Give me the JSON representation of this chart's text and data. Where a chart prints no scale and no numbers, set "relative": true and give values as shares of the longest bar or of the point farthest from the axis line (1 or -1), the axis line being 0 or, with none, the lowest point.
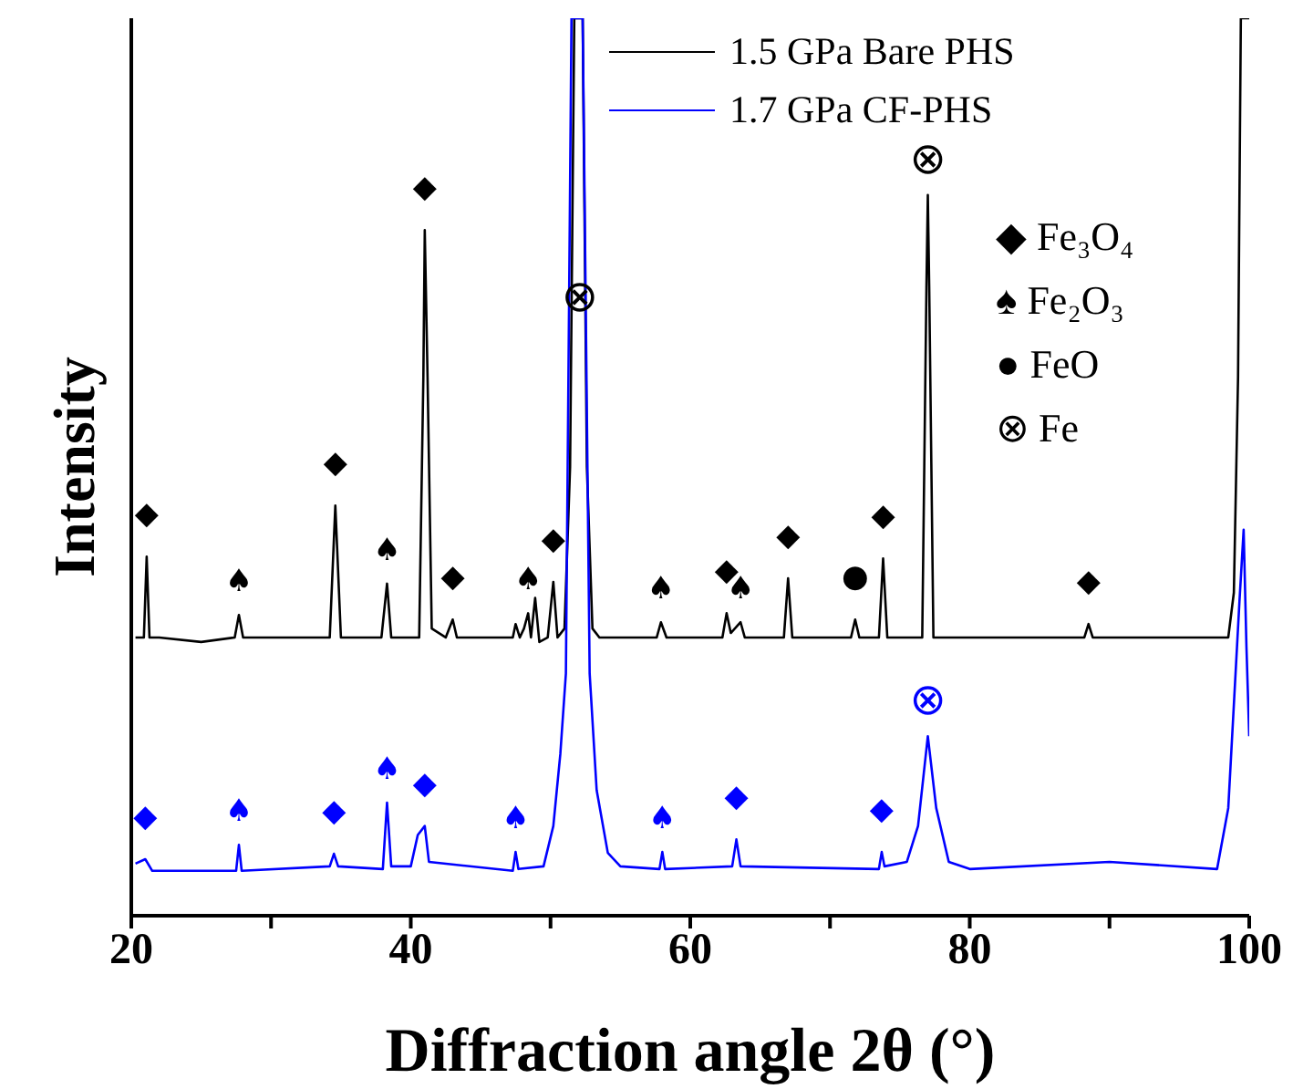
{
  "chart_data": {
    "type": "line",
    "xlabel": "Diffraction angle 2θ (°)",
    "ylabel": "Intensity",
    "relative": true,
    "legend": "top right",
    "line_style": "solid",
    "marker": "none",
    "xlim": [
      20,
      100
    ],
    "xticks": [
      20,
      {
        "value": 30,
        "label": null
      },
      40,
      {
        "value": 50,
        "label": null
      },
      60,
      {
        "value": 70,
        "label": null
      },
      80,
      {
        "value": 90,
        "label": null
      },
      100
    ],
    "series": [
      {
        "name": "1.5 GPa Bare PHS",
        "color": "#000000",
        "x": [
          20.3,
          20.9,
          21.1,
          21.3,
          22,
          25,
          27.4,
          27.7,
          28,
          31,
          34.2,
          34.6,
          35,
          37.9,
          38.3,
          38.6,
          40.6,
          40.9,
          41.0,
          41.2,
          41.5,
          42.5,
          43.0,
          43.3,
          47.3,
          47.5,
          47.8,
          48.1,
          48.4,
          48.6,
          48.9,
          49.2,
          49.8,
          50.2,
          50.5,
          51,
          51.4,
          51.7,
          52.3,
          52.6,
          53,
          53.5,
          57.6,
          57.9,
          58.3,
          62.3,
          62.6,
          62.9,
          63.6,
          63.9,
          66.7,
          67.0,
          67.3,
          71.5,
          71.8,
          72.1,
          73.5,
          73.8,
          74.1,
          76.6,
          76.9,
          77.0,
          77.1,
          77.4,
          80,
          88.2,
          88.5,
          88.8,
          95,
          98.5,
          98.9,
          99.2,
          99.4,
          100
        ],
        "values": [
          0.31,
          0.31,
          0.4,
          0.31,
          0.31,
          0.305,
          0.31,
          0.335,
          0.31,
          0.31,
          0.31,
          0.457,
          0.31,
          0.31,
          0.37,
          0.31,
          0.31,
          0.6,
          0.764,
          0.6,
          0.32,
          0.31,
          0.33,
          0.31,
          0.31,
          0.325,
          0.31,
          0.32,
          0.337,
          0.31,
          0.354,
          0.305,
          0.31,
          0.372,
          0.31,
          0.32,
          0.5,
          1,
          1,
          0.5,
          0.32,
          0.31,
          0.31,
          0.327,
          0.31,
          0.31,
          0.337,
          0.315,
          0.327,
          0.31,
          0.31,
          0.376,
          0.31,
          0.31,
          0.33,
          0.31,
          0.31,
          0.398,
          0.31,
          0.31,
          0.7,
          0.803,
          0.7,
          0.31,
          0.31,
          0.31,
          0.325,
          0.31,
          0.31,
          0.31,
          0.36,
          0.6,
          1,
          1
        ]
      },
      {
        "name": "1.7 GPa CF-PHS",
        "color": "#0000ff",
        "x": [
          20.3,
          21.0,
          21.5,
          26,
          27.5,
          27.7,
          27.9,
          34.2,
          34.5,
          34.8,
          38,
          38.3,
          38.6,
          40,
          40.5,
          41.0,
          41.3,
          47.3,
          47.5,
          47.7,
          49.5,
          50.2,
          50.7,
          51.1,
          51.5,
          52.3,
          52.8,
          53.3,
          54.1,
          55,
          57.8,
          58,
          58.2,
          63.0,
          63.3,
          63.6,
          73.5,
          73.7,
          73.9,
          75.5,
          76.3,
          77.0,
          77.6,
          78.5,
          80,
          90,
          97.7,
          98.5,
          99.3,
          99.6,
          99.8,
          100
        ],
        "values": [
          0.058,
          0.063,
          0.05,
          0.05,
          0.05,
          0.079,
          0.05,
          0.055,
          0.069,
          0.055,
          0.052,
          0.126,
          0.055,
          0.055,
          0.09,
          0.1,
          0.06,
          0.05,
          0.071,
          0.052,
          0.055,
          0.1,
          0.18,
          0.27,
          1,
          1,
          0.27,
          0.14,
          0.07,
          0.055,
          0.052,
          0.071,
          0.052,
          0.055,
          0.085,
          0.055,
          0.052,
          0.071,
          0.055,
          0.06,
          0.1,
          0.2,
          0.12,
          0.06,
          0.052,
          0.06,
          0.052,
          0.12,
          0.35,
          0.43,
          0.3,
          0.2
        ]
      }
    ],
    "annotations": [
      {
        "text": "◆",
        "x": 21.1,
        "y": 0.4
      },
      {
        "text": "♠",
        "x": 27.7,
        "y": 0.335
      },
      {
        "text": "◆",
        "x": 34.6,
        "y": 0.457
      },
      {
        "text": "♠",
        "x": 38.3,
        "y": 0.37
      },
      {
        "text": "◆",
        "x": 41.0,
        "y": 0.764
      },
      {
        "text": "◆",
        "x": 43.0,
        "y": 0.33
      },
      {
        "text": "♠",
        "x": 48.4,
        "y": 0.337
      },
      {
        "text": "◆",
        "x": 50.2,
        "y": 0.372
      },
      {
        "text": "⊗",
        "x": 52.1,
        "y": 0.69
      },
      {
        "text": "♠",
        "x": 57.9,
        "y": 0.327
      },
      {
        "text": "◆",
        "x": 62.6,
        "y": 0.337
      },
      {
        "text": "♠",
        "x": 63.6,
        "y": 0.327
      },
      {
        "text": "◆",
        "x": 67.0,
        "y": 0.376
      },
      {
        "text": "●",
        "x": 71.8,
        "y": 0.33
      },
      {
        "text": "◆",
        "x": 73.8,
        "y": 0.398
      },
      {
        "text": "⊗",
        "x": 77.0,
        "y": 0.803
      },
      {
        "text": "◆",
        "x": 88.5,
        "y": 0.325
      },
      {
        "text": "◆",
        "x": 21.0,
        "y": 0.063
      },
      {
        "text": "♠",
        "x": 27.7,
        "y": 0.079
      },
      {
        "text": "◆",
        "x": 34.5,
        "y": 0.069
      },
      {
        "text": "♠",
        "x": 38.3,
        "y": 0.126
      },
      {
        "text": "◆",
        "x": 41.0,
        "y": 0.1
      },
      {
        "text": "♠",
        "x": 47.5,
        "y": 0.071
      },
      {
        "text": "♠",
        "x": 58.0,
        "y": 0.071
      },
      {
        "text": "◆",
        "x": 63.3,
        "y": 0.085
      },
      {
        "text": "◆",
        "x": 73.7,
        "y": 0.071
      },
      {
        "text": "⊗",
        "x": 77.0,
        "y": 0.2
      },
      "◆ Fe₃O₄",
      "♠ Fe₂O₃",
      "● FeO",
      "⊗ Fe"
    ]
  }
}
